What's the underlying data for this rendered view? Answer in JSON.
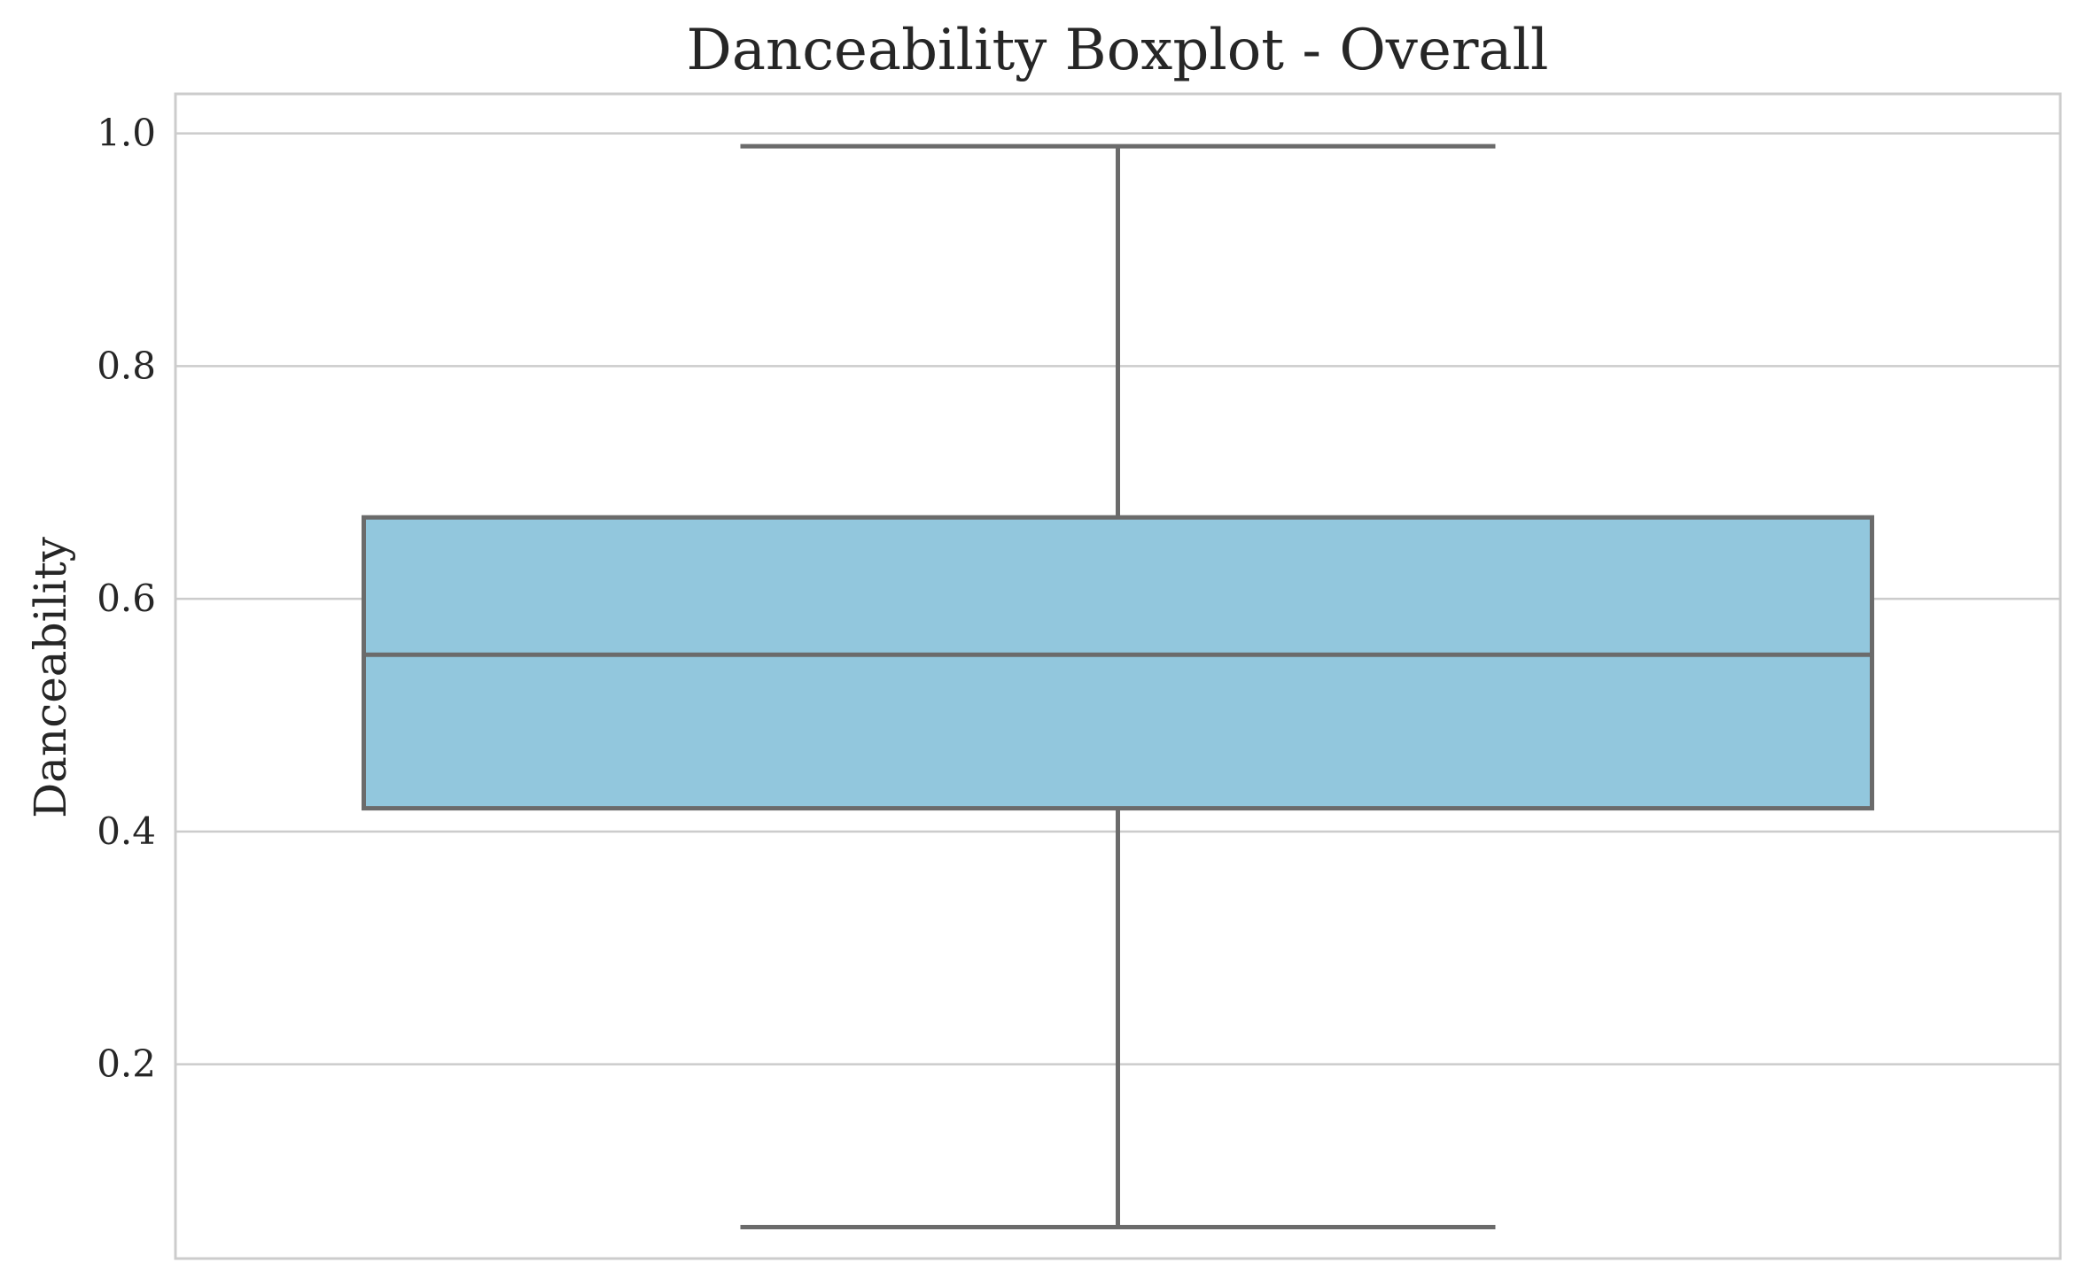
{
  "chart_data": {
    "type": "boxplot",
    "title": "Danceability Boxplot - Overall",
    "xlabel": "",
    "ylabel": "Danceability",
    "ylim": [
      0.033,
      1.034
    ],
    "yticks": [
      0.2,
      0.4,
      0.6,
      0.8,
      1.0
    ],
    "ytick_labels": [
      "0.2",
      "0.4",
      "0.6",
      "0.8",
      "1.0"
    ],
    "grid": "horizontal",
    "box": {
      "whisker_low": 0.06,
      "q1": 0.42,
      "median": 0.552,
      "q3": 0.67,
      "whisker_high": 0.989
    },
    "colors": {
      "box_fill": "#92c7dd",
      "line": "#6b6b6b",
      "grid": "#cccccc",
      "text": "#262626"
    }
  }
}
